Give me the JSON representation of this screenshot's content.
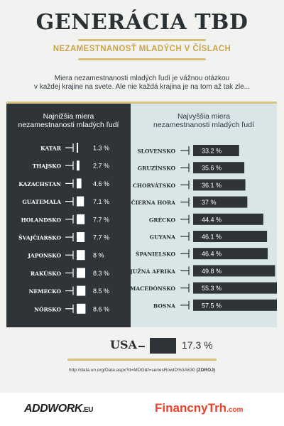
{
  "header": {
    "title": "GENERÁCIA TBD",
    "subtitle": "NEZAMESTNANOSŤ MLADÝCH V ČÍSLACH",
    "intro_line1": "Miera nezamestnanosti mladých ľudí je vážnou otázkou",
    "intro_line2": "v každej krajine na svete. Ale nie každá krajina je na tom až tak zle..."
  },
  "left_panel": {
    "line1": "Najnižšia miera",
    "line2": "nezamestnanosti mladých ľudí"
  },
  "right_panel": {
    "line1": "Najvyššia miera",
    "line2": "nezamestnanosti mladých ľudí"
  },
  "usa": {
    "label": "USA",
    "value": 17.3,
    "value_label": "17.3 %"
  },
  "source": {
    "url": "http://data.un.org/Data.aspx?d=MDG&f=seriesRowID%3A630",
    "tag": "(ZDROJ)"
  },
  "footer": {
    "logo_left": "ADDWORK",
    "logo_left_suffix": ".EU",
    "logo_right": "FinancnyTrh",
    "logo_right_suffix": ".com"
  },
  "colors": {
    "dark": "#2f3438",
    "light": "#d9e6e8",
    "gold": "#d9c27d",
    "bar_light": "#ffffff"
  },
  "chart_data": [
    {
      "type": "bar",
      "orientation": "horizontal",
      "categories": [
        "KATAR",
        "THAJSKO",
        "KAZACHSTAN",
        "GUATEMALA",
        "HOLANDSKO",
        "ŠVAJČIARSKO",
        "JAPONSKO",
        "RAKÚSKO",
        "NEMECKO",
        "NÓRSKO"
      ],
      "values": [
        1.3,
        2.7,
        4.6,
        7.1,
        7.7,
        7.7,
        8,
        8.3,
        8.5,
        8.6
      ],
      "value_labels": [
        "1.3 %",
        "2.7 %",
        "4.6 %",
        "7.1 %",
        "7.7 %",
        "7.7 %",
        "8 %",
        "8.3 %",
        "8.5 %",
        "8.6 %"
      ]
    },
    {
      "type": "bar",
      "orientation": "horizontal",
      "categories": [
        "SLOVENSKO",
        "GRUZÍNSKO",
        "CHORVÁTSKO",
        "ČIERNA HORA",
        "GRÉCKO",
        "GUYANA",
        "ŠPANIELSKO",
        "JUŽNÁ AFRIKA",
        "MACEDÓNSKO",
        "BOSNA"
      ],
      "values": [
        33.2,
        35.6,
        36.1,
        37,
        44.4,
        46.1,
        46.4,
        49.8,
        55.3,
        57.5
      ],
      "value_labels": [
        "33.2 %",
        "35.6 %",
        "36.1 %",
        "37 %",
        "44.4 %",
        "46.1 %",
        "46.4 %",
        "49.8 %",
        "55.3 %",
        "57.5 %"
      ]
    }
  ]
}
